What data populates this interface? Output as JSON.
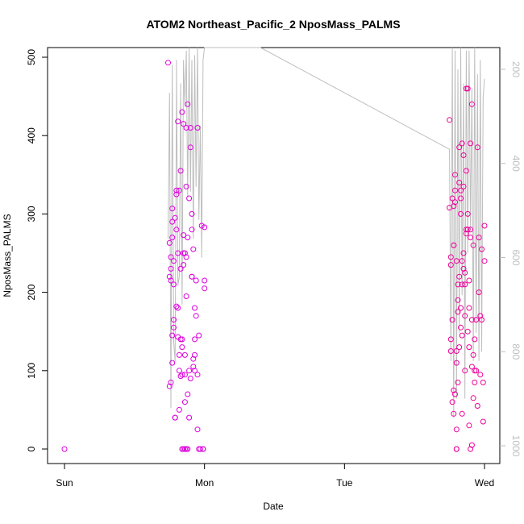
{
  "chart_data": {
    "type": "scatter",
    "title": "ATOM2 Northeast_Pacific_2 NposMass_PALMS",
    "xlabel": "Date",
    "ylabel": "NposMass_PALMS",
    "x_ticks": [
      "Sun",
      "Mon",
      "Tue",
      "Wed"
    ],
    "xlim": [
      "Sun",
      "Wed"
    ],
    "ylim": [
      0,
      500
    ],
    "y_ticks": [
      0,
      100,
      200,
      300,
      400,
      500
    ],
    "y2_ticks": [
      200,
      400,
      600,
      800,
      1000
    ],
    "y2lim": [
      1000,
      200
    ],
    "grid": false,
    "colors": {
      "points_a": "#dd00dd",
      "points_b": "#ee0099",
      "altitude_line": "#bebebe"
    },
    "series": [
      {
        "x": [
          0.0,
          0.74,
          0.75,
          0.75,
          0.75,
          0.76,
          0.76,
          0.76,
          0.76,
          0.77,
          0.77,
          0.77,
          0.77,
          0.78,
          0.78,
          0.78,
          0.78,
          0.79,
          0.79,
          0.79,
          0.8,
          0.8,
          0.8,
          0.8,
          0.81,
          0.81,
          0.81,
          0.81,
          0.82,
          0.82,
          0.82,
          0.83,
          0.83,
          0.83,
          0.83,
          0.84,
          0.84,
          0.84,
          0.84,
          0.85,
          0.85,
          0.85,
          0.85,
          0.86,
          0.86,
          0.86,
          0.86,
          0.87,
          0.87,
          0.87,
          0.87,
          0.88,
          0.88,
          0.88,
          0.89,
          0.89,
          0.89,
          0.9,
          0.9,
          0.9,
          0.91,
          0.91,
          0.91,
          0.91,
          0.92,
          0.92,
          0.92,
          0.93,
          0.93,
          0.93,
          0.93,
          0.94,
          0.94,
          0.95,
          0.95,
          0.95,
          0.96,
          0.96,
          0.97,
          0.98,
          0.99,
          0.99,
          0.99,
          1.0,
          1.0,
          1.0,
          0.84,
          0.85,
          0.86,
          0.87,
          0.88,
          0.77,
          0.82
        ],
        "y": [
          0,
          493,
          80,
          263,
          220,
          215,
          230,
          245,
          85,
          290,
          307,
          270,
          145,
          165,
          240,
          210,
          155,
          40,
          40,
          295,
          182,
          330,
          325,
          280,
          418,
          143,
          250,
          180,
          100,
          50,
          120,
          230,
          140,
          93,
          355,
          95,
          140,
          130,
          430,
          415,
          250,
          273,
          235,
          60,
          120,
          95,
          250,
          245,
          410,
          335,
          195,
          440,
          270,
          70,
          320,
          40,
          100,
          385,
          410,
          90,
          300,
          220,
          280,
          220,
          255,
          105,
          115,
          120,
          180,
          100,
          140,
          170,
          215,
          95,
          410,
          25,
          0,
          145,
          0,
          285,
          0,
          0,
          0,
          215,
          205,
          283,
          0,
          0,
          0,
          0,
          0,
          110,
          330
        ]
      },
      {
        "x": [
          2.75,
          2.75,
          2.76,
          2.76,
          2.76,
          2.76,
          2.77,
          2.77,
          2.77,
          2.78,
          2.78,
          2.78,
          2.78,
          2.79,
          2.79,
          2.79,
          2.8,
          2.8,
          2.8,
          2.8,
          2.81,
          2.81,
          2.81,
          2.82,
          2.82,
          2.82,
          2.83,
          2.83,
          2.83,
          2.83,
          2.84,
          2.84,
          2.84,
          2.84,
          2.85,
          2.85,
          2.85,
          2.86,
          2.86,
          2.86,
          2.87,
          2.87,
          2.87,
          2.88,
          2.88,
          2.88,
          2.89,
          2.89,
          2.89,
          2.9,
          2.9,
          2.9,
          2.91,
          2.91,
          2.91,
          2.92,
          2.92,
          2.93,
          2.93,
          2.94,
          2.94,
          2.95,
          2.95,
          2.96,
          2.96,
          2.97,
          2.97,
          2.98,
          2.98,
          2.99,
          2.99,
          3.0,
          3.0,
          2.79,
          2.8,
          2.81,
          2.82,
          2.83,
          2.84,
          2.85,
          2.86,
          2.87,
          2.88,
          2.89,
          2.9,
          2.91,
          2.92,
          2.93,
          2.78,
          2.8
        ],
        "y": [
          308,
          420,
          140,
          125,
          245,
          235,
          320,
          165,
          60,
          310,
          260,
          260,
          45,
          350,
          330,
          315,
          240,
          0,
          0,
          125,
          175,
          210,
          85,
          385,
          220,
          130,
          180,
          155,
          330,
          300,
          145,
          240,
          390,
          45,
          250,
          375,
          335,
          210,
          170,
          100,
          460,
          355,
          275,
          280,
          300,
          150,
          30,
          130,
          180,
          390,
          280,
          270,
          440,
          165,
          105,
          260,
          120,
          85,
          140,
          165,
          100,
          55,
          385,
          270,
          200,
          170,
          95,
          255,
          165,
          35,
          85,
          240,
          285,
          70,
          110,
          190,
          340,
          320,
          210,
          230,
          225,
          280,
          460,
          215,
          0,
          5,
          65,
          100,
          75,
          25
        ]
      }
    ],
    "altitude_line": {
      "x": [
        0.74,
        0.75,
        0.76,
        0.77,
        0.78,
        0.79,
        0.8,
        0.8,
        0.81,
        0.82,
        0.83,
        0.84,
        0.85,
        0.86,
        0.87,
        0.88,
        0.89,
        0.9,
        0.91,
        0.92,
        0.93,
        0.94,
        0.95,
        0.96,
        0.97,
        0.98,
        0.99,
        1.0,
        1.4,
        2.75,
        2.76,
        2.77,
        2.78,
        2.79,
        2.8,
        2.81,
        2.82,
        2.83,
        2.84,
        2.85,
        2.86,
        2.87,
        2.88,
        2.89,
        2.9,
        2.91,
        2.92,
        2.93,
        2.94,
        2.95,
        2.96,
        2.97,
        2.98,
        2.99,
        3.0
      ],
      "y": [
        560,
        250,
        920,
        190,
        780,
        820,
        250,
        180,
        660,
        640,
        230,
        700,
        180,
        280,
        160,
        470,
        150,
        460,
        180,
        560,
        170,
        450,
        150,
        520,
        320,
        600,
        180,
        150,
        145,
        370,
        820,
        150,
        940,
        160,
        900,
        200,
        760,
        150,
        680,
        230,
        900,
        160,
        590,
        160,
        540,
        240,
        820,
        150,
        760,
        210,
        820,
        180,
        800,
        260,
        220
      ]
    }
  }
}
